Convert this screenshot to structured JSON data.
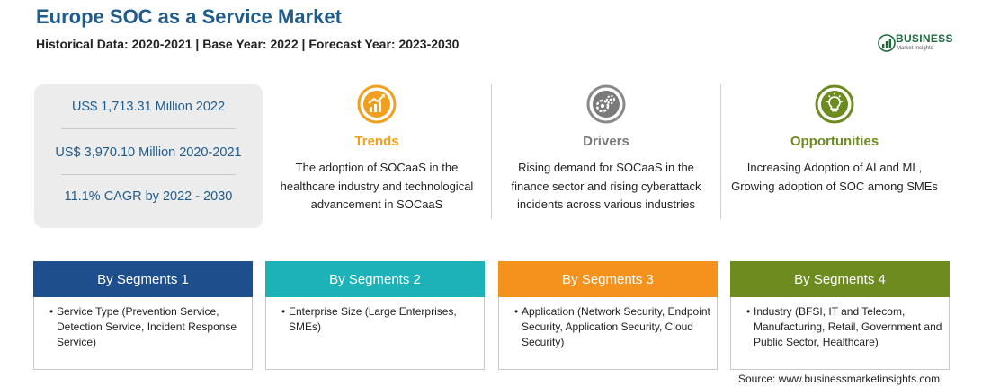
{
  "header": {
    "title": "Europe SOC as a Service Market",
    "subtitle": "Historical Data: 2020-2021 | Base Year: 2022 | Forecast Year: 2023-2030"
  },
  "logo": {
    "name": "BUSINESS",
    "tagline": "Market Insights"
  },
  "stats": [
    "US$ 1,713.31 Million 2022",
    "US$ 3,970.10 Million 2020-2021",
    "11.1% CAGR by 2022 - 2030"
  ],
  "columns": [
    {
      "title": "Trends",
      "icon": "trend-chart-icon",
      "color": "#f0a01e",
      "text": "The adoption of SOCaaS in the healthcare industry and technological advancement in SOCaaS"
    },
    {
      "title": "Drivers",
      "icon": "gears-icon",
      "color": "#7a7a7a",
      "text": "Rising demand for SOCaaS in the finance sector and rising cyberattack incidents across various industries"
    },
    {
      "title": "Opportunities",
      "icon": "lightbulb-icon",
      "color": "#6d8b1f",
      "text": "Increasing Adoption of AI and ML, Growing adoption of SOC among SMEs"
    }
  ],
  "segments": [
    {
      "title": "By Segments 1",
      "color": "#1e4f8c",
      "item": "Service Type (Prevention Service, Detection Service, Incident Response Service)"
    },
    {
      "title": "By Segments 2",
      "color": "#1cb2b8",
      "item": "Enterprise Size (Large Enterprises, SMEs)"
    },
    {
      "title": "By Segments 3",
      "color": "#f5921e",
      "item": "Application (Network Security, Endpoint Security, Application Security, Cloud Security)"
    },
    {
      "title": "By Segments 4",
      "color": "#6d8b1f",
      "item": "Industry (BFSI, IT and Telecom, Manufacturing, Retail, Government and Public Sector, Healthcare)"
    }
  ],
  "source": "Source: www.businessmarketinsights.com"
}
